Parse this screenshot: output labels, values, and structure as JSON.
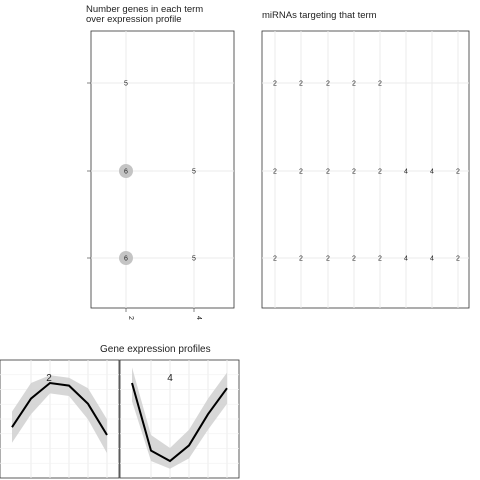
{
  "titles": {
    "genes": "Number genes in each term\n over expression profile",
    "mirnas": "miRNAs targeting that term",
    "profiles": "Gene expression profiles"
  },
  "chart_data": [
    {
      "type": "scatter",
      "title": "Number genes in each term\n over expression profile",
      "x_ticks": [
        "2",
        "4"
      ],
      "rows": 3,
      "points": [
        {
          "row": 1,
          "col": 1,
          "value": 5,
          "circle": false
        },
        {
          "row": 2,
          "col": 1,
          "value": 6,
          "circle": true
        },
        {
          "row": 2,
          "col": 2,
          "value": 5,
          "circle": false
        },
        {
          "row": 3,
          "col": 1,
          "value": 6,
          "circle": true
        },
        {
          "row": 3,
          "col": 2,
          "value": 5,
          "circle": false
        }
      ]
    },
    {
      "type": "table",
      "title": "miRNAs targeting that term",
      "rows": [
        [
          "2",
          "2",
          "2",
          "2",
          "2"
        ],
        [
          "2",
          "2",
          "2",
          "2",
          "2",
          "4",
          "4",
          "2"
        ],
        [
          "2",
          "2",
          "2",
          "2",
          "2",
          "4",
          "4",
          "2"
        ]
      ]
    },
    {
      "type": "line",
      "title": "Gene expression profiles",
      "series": [
        {
          "name": "2",
          "values": [
            0.1,
            0.65,
            0.95,
            0.9,
            0.55,
            -0.05
          ],
          "lower": [
            -0.2,
            0.35,
            0.75,
            0.7,
            0.25,
            -0.4
          ],
          "upper": [
            0.4,
            0.95,
            1.1,
            1.05,
            0.85,
            0.25
          ]
        },
        {
          "name": "4",
          "values": [
            0.95,
            -0.35,
            -0.55,
            -0.25,
            0.35,
            0.85
          ],
          "lower": [
            0.6,
            -0.55,
            -0.7,
            -0.5,
            0.05,
            0.55
          ],
          "upper": [
            1.25,
            -0.05,
            -0.3,
            0.05,
            0.65,
            1.15
          ]
        }
      ]
    }
  ]
}
